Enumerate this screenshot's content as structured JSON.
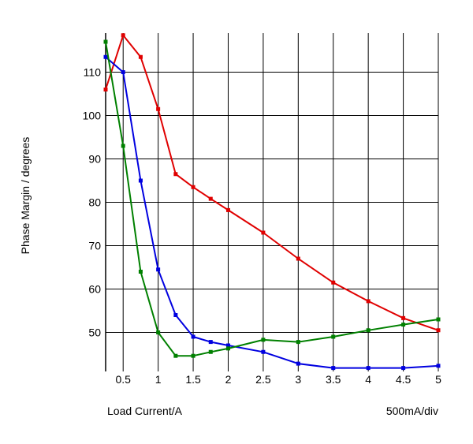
{
  "chart_data": {
    "type": "line",
    "title": "",
    "xlabel": "Load Current/A",
    "ylabel": "Phase Margin / degrees",
    "scale_note": "500mA/div",
    "xlim": [
      0.25,
      5
    ],
    "ylim": [
      41,
      119
    ],
    "x_ticks": [
      0.5,
      1,
      1.5,
      2,
      2.5,
      3,
      3.5,
      4,
      4.5,
      5
    ],
    "x_tick_labels": [
      "0.5",
      "1",
      "1.5",
      "2",
      "2.5",
      "3",
      "3.5",
      "4",
      "4.5",
      "5"
    ],
    "y_ticks": [
      50,
      60,
      70,
      80,
      90,
      100,
      110
    ],
    "y_tick_labels": [
      "50",
      "60",
      "70",
      "80",
      "90",
      "100",
      "110"
    ],
    "grid": true,
    "legend": "none",
    "series": [
      {
        "color": "#e00000",
        "points": [
          [
            0.25,
            106
          ],
          [
            0.5,
            118.5
          ],
          [
            0.75,
            113.5
          ],
          [
            1.0,
            101.5
          ],
          [
            1.25,
            86.5
          ],
          [
            1.5,
            83.5
          ],
          [
            1.75,
            80.8
          ],
          [
            2.0,
            78.2
          ],
          [
            2.5,
            73
          ],
          [
            3.0,
            67
          ],
          [
            3.5,
            61.5
          ],
          [
            4.0,
            57.2
          ],
          [
            4.5,
            53.3
          ],
          [
            5.0,
            50.5
          ]
        ]
      },
      {
        "color": "#0000e0",
        "points": [
          [
            0.25,
            113.5
          ],
          [
            0.5,
            110
          ],
          [
            0.75,
            85
          ],
          [
            1.0,
            64.5
          ],
          [
            1.25,
            54
          ],
          [
            1.5,
            49
          ],
          [
            1.75,
            47.8
          ],
          [
            2.0,
            47
          ],
          [
            2.5,
            45.5
          ],
          [
            3.0,
            42.8
          ],
          [
            3.5,
            41.8
          ],
          [
            4.0,
            41.8
          ],
          [
            4.5,
            41.8
          ],
          [
            5.0,
            42.3
          ]
        ]
      },
      {
        "color": "#008000",
        "points": [
          [
            0.25,
            117
          ],
          [
            0.5,
            93
          ],
          [
            0.75,
            64
          ],
          [
            1.0,
            50
          ],
          [
            1.25,
            44.6
          ],
          [
            1.5,
            44.6
          ],
          [
            1.75,
            45.5
          ],
          [
            2.0,
            46.3
          ],
          [
            2.5,
            48.3
          ],
          [
            3.0,
            47.8
          ],
          [
            3.5,
            49
          ],
          [
            4.0,
            50.5
          ],
          [
            4.5,
            51.8
          ],
          [
            5.0,
            53
          ]
        ]
      }
    ]
  }
}
